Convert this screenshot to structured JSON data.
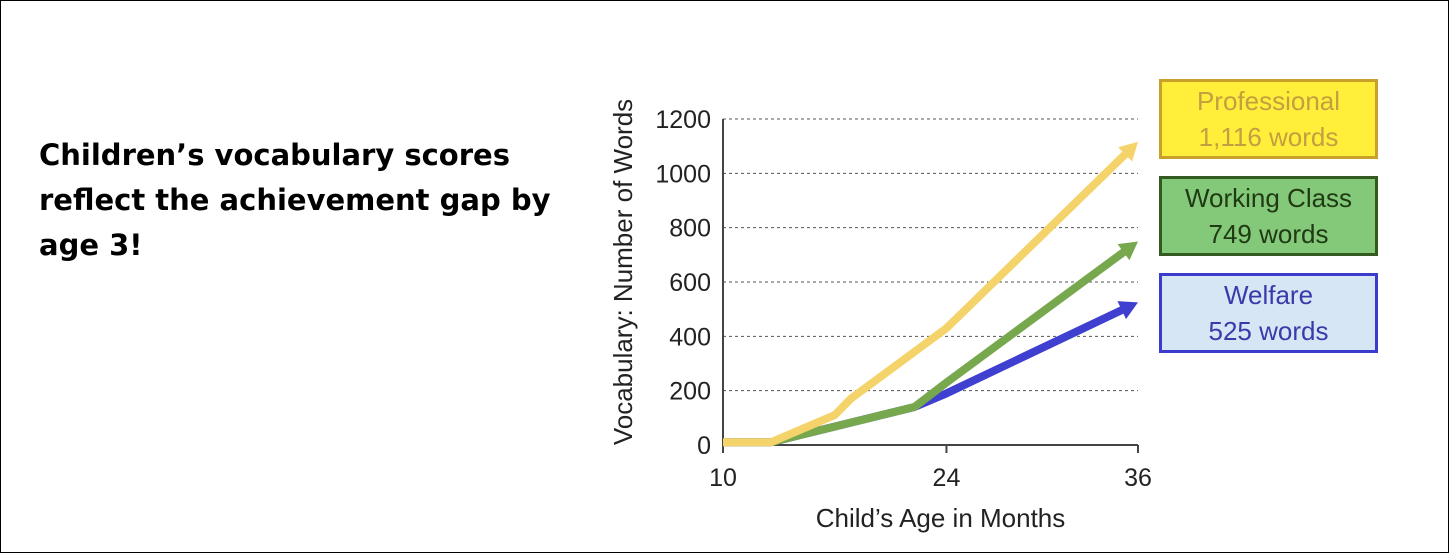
{
  "headline": "Children’s vocabulary scores reflect the achievement gap by age 3!",
  "chart_data": {
    "type": "line",
    "title": "",
    "xlabel": "Child’s Age in Months",
    "ylabel": "Vocabulary: Number of Words",
    "xlim": [
      10,
      36
    ],
    "ylim": [
      0,
      1200
    ],
    "x_ticks": [
      "10",
      "24",
      "36"
    ],
    "x_tick_values": [
      10,
      24,
      36
    ],
    "y_ticks": [
      "0",
      "200",
      "400",
      "600",
      "800",
      "1000",
      "1200"
    ],
    "y_tick_values": [
      0,
      200,
      400,
      600,
      800,
      1000,
      1200
    ],
    "grid": "horizontal dashed",
    "legend_placement": "right",
    "series": [
      {
        "name": "Professional",
        "label_value": "1,116 words",
        "color": "#f5d36b",
        "border": "#c8a02a",
        "text_color": "#c0a040",
        "fill": "#ffef3a",
        "x": [
          10,
          13,
          17,
          18,
          24,
          36
        ],
        "y": [
          10,
          10,
          110,
          170,
          430,
          1116
        ]
      },
      {
        "name": "Working Class",
        "label_value": "749 words",
        "color": "#77a84e",
        "border": "#335a1f",
        "text_color": "#203a14",
        "fill": "#84c97a",
        "x": [
          10,
          13,
          22,
          24,
          36
        ],
        "y": [
          10,
          10,
          140,
          230,
          749
        ]
      },
      {
        "name": "Welfare",
        "label_value": "525 words",
        "color": "#4040d0",
        "border": "#3c3ccc",
        "text_color": "#3a3aaa",
        "fill": "#d6e6f4",
        "x": [
          10,
          13,
          22,
          24,
          36
        ],
        "y": [
          10,
          10,
          140,
          190,
          525
        ]
      }
    ]
  }
}
